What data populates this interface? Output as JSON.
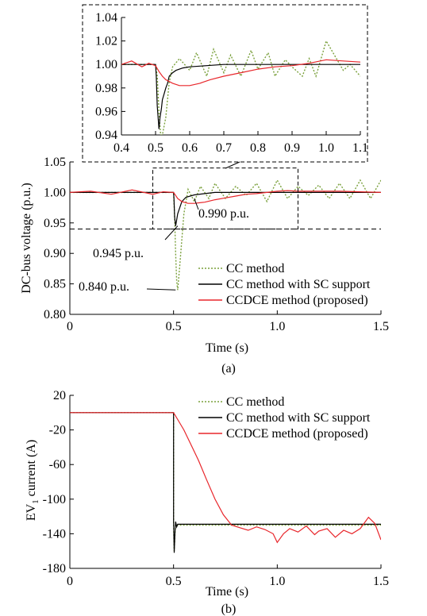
{
  "colors": {
    "cc": "#7aa03c",
    "sc": "#000000",
    "ccdce": "#e8262b"
  },
  "chart_data": [
    {
      "type": "line",
      "panel": "(a)",
      "xlabel": "Time (s)",
      "ylabel": "DC-bus voltage (p.u.)",
      "xlim": [
        0,
        1.5
      ],
      "ylim": [
        0.8,
        1.05
      ],
      "xticks": [
        0,
        0.5,
        1.0,
        1.5
      ],
      "xtick_labels": [
        "0",
        "0.5",
        "1.0",
        "1.5"
      ],
      "yticks": [
        0.8,
        0.85,
        0.9,
        0.95,
        1.0,
        1.05
      ],
      "ytick_labels": [
        "0.80",
        "0.85",
        "0.90",
        "0.95",
        "1.00",
        "1.05"
      ],
      "reference_line": 0.94,
      "annotations": [
        {
          "text": "0.990 p.u.",
          "x": 0.6,
          "y": 0.99
        },
        {
          "text": "0.945 p.u.",
          "x": 0.52,
          "y": 0.945
        },
        {
          "text": "0.840 p.u.",
          "x": 0.51,
          "y": 0.84
        }
      ],
      "legend": [
        "CC method",
        "CC method with SC support",
        "CCDCE method (proposed)"
      ],
      "series": [
        {
          "name": "CC method",
          "x": [
            0,
            0.1,
            0.2,
            0.3,
            0.4,
            0.48,
            0.5,
            0.505,
            0.51,
            0.515,
            0.52,
            0.53,
            0.55,
            0.57,
            0.6,
            0.63,
            0.67,
            0.7,
            0.75,
            0.8,
            0.85,
            0.9,
            0.95,
            1.0,
            1.05,
            1.1,
            1.15,
            1.2,
            1.25,
            1.3,
            1.35,
            1.4,
            1.45,
            1.5
          ],
          "y": [
            1.0,
            1.0,
            1.0,
            1.0,
            1.0,
            1.0,
            1.0,
            0.96,
            0.9,
            0.855,
            0.84,
            0.88,
            0.965,
            1.005,
            0.985,
            1.01,
            0.99,
            1.015,
            0.99,
            1.01,
            0.995,
            1.015,
            0.985,
            1.02,
            0.99,
            1.01,
            0.995,
            1.012,
            0.99,
            1.015,
            0.99,
            1.02,
            0.99,
            1.02
          ]
        },
        {
          "name": "CC method with SC support",
          "x": [
            0,
            0.1,
            0.2,
            0.3,
            0.4,
            0.5,
            0.502,
            0.505,
            0.51,
            0.515,
            0.52,
            0.53,
            0.54,
            0.56,
            0.6,
            0.65,
            0.7,
            0.8,
            0.9,
            1.0,
            1.1,
            1.2,
            1.3,
            1.4,
            1.5
          ],
          "y": [
            1.0,
            1.0,
            1.0,
            1.0,
            1.0,
            1.0,
            0.99,
            0.96,
            0.945,
            0.955,
            0.965,
            0.975,
            0.985,
            0.992,
            0.996,
            0.998,
            1.0,
            1.0,
            1.0,
            1.0,
            1.0,
            1.0,
            1.0,
            1.0,
            1.0
          ]
        },
        {
          "name": "CCDCE method (proposed)",
          "x": [
            0,
            0.1,
            0.2,
            0.3,
            0.4,
            0.45,
            0.5,
            0.51,
            0.52,
            0.54,
            0.57,
            0.6,
            0.65,
            0.7,
            0.75,
            0.8,
            0.85,
            0.9,
            0.95,
            1.0,
            1.05,
            1.1,
            1.2,
            1.3,
            1.4,
            1.5
          ],
          "y": [
            1.0,
            1.002,
            0.997,
            1.004,
            0.997,
            1.001,
            1.0,
            0.995,
            0.99,
            0.985,
            0.982,
            0.982,
            0.984,
            0.988,
            0.991,
            0.994,
            0.997,
            0.998,
            1.0,
            1.002,
            1.003,
            1.002,
            1.002,
            1.002,
            1.001,
            1.0
          ]
        }
      ]
    },
    {
      "type": "line",
      "panel": "inset",
      "xlim": [
        0.4,
        1.1
      ],
      "ylim": [
        0.94,
        1.04
      ],
      "xticks": [
        0.4,
        0.5,
        0.6,
        0.7,
        0.8,
        0.9,
        1.0,
        1.1
      ],
      "xtick_labels": [
        "0.4",
        "0.5",
        "0.6",
        "0.7",
        "0.8",
        "0.9",
        "1.0",
        "1.1"
      ],
      "yticks": [
        0.94,
        0.96,
        0.98,
        1.0,
        1.02,
        1.04
      ],
      "ytick_labels": [
        "0.94",
        "0.96",
        "0.98",
        "1.00",
        "1.02",
        "1.04"
      ],
      "series": [
        {
          "name": "CC method",
          "x": [
            0.4,
            0.45,
            0.49,
            0.5,
            0.505,
            0.51,
            0.515,
            0.52,
            0.53,
            0.54,
            0.55,
            0.57,
            0.6,
            0.62,
            0.65,
            0.67,
            0.7,
            0.72,
            0.75,
            0.78,
            0.8,
            0.83,
            0.85,
            0.88,
            0.9,
            0.93,
            0.95,
            0.97,
            1.0,
            1.02,
            1.05,
            1.07,
            1.1
          ],
          "y": [
            1.0,
            1.0,
            1.0,
            1.0,
            0.99,
            0.96,
            0.94,
            0.94,
            0.955,
            0.985,
            0.998,
            1.005,
            0.995,
            1.01,
            0.99,
            1.013,
            0.993,
            1.008,
            0.99,
            1.012,
            0.996,
            1.01,
            0.99,
            1.004,
            0.998,
            0.99,
            1.005,
            0.99,
            1.02,
            1.01,
            0.995,
            1.0,
            0.99
          ]
        },
        {
          "name": "CC method with SC support",
          "x": [
            0.4,
            0.45,
            0.49,
            0.5,
            0.502,
            0.505,
            0.51,
            0.513,
            0.517,
            0.52,
            0.525,
            0.53,
            0.535,
            0.54,
            0.55,
            0.56,
            0.58,
            0.6,
            0.65,
            0.7,
            0.75,
            0.8,
            0.85,
            0.9,
            0.95,
            1.0,
            1.05,
            1.1
          ],
          "y": [
            1.0,
            1.0,
            1.0,
            1.0,
            0.99,
            0.965,
            0.945,
            0.955,
            0.962,
            0.97,
            0.975,
            0.98,
            0.984,
            0.99,
            0.993,
            0.995,
            0.997,
            0.998,
            0.999,
            1.0,
            1.0,
            1.0,
            1.0,
            1.0,
            1.0,
            1.0,
            1.0,
            1.0
          ]
        },
        {
          "name": "CCDCE method (proposed)",
          "x": [
            0.4,
            0.43,
            0.46,
            0.48,
            0.5,
            0.51,
            0.52,
            0.53,
            0.55,
            0.57,
            0.6,
            0.63,
            0.66,
            0.7,
            0.75,
            0.8,
            0.85,
            0.9,
            0.95,
            1.0,
            1.05,
            1.1
          ],
          "y": [
            1.0,
            1.003,
            0.998,
            1.001,
            0.999,
            0.994,
            0.99,
            0.987,
            0.984,
            0.982,
            0.982,
            0.984,
            0.987,
            0.99,
            0.993,
            0.996,
            0.998,
            0.999,
            1.001,
            1.004,
            1.003,
            1.002
          ]
        }
      ]
    },
    {
      "type": "line",
      "panel": "(b)",
      "xlabel": "Time (s)",
      "ylabel": "EV",
      "ylabel_sub": "1",
      "ylabel_rest": " current (A)",
      "xlim": [
        0,
        1.5
      ],
      "ylim": [
        -180,
        20
      ],
      "xticks": [
        0,
        0.5,
        1.0,
        1.5
      ],
      "xtick_labels": [
        "0",
        "0.5",
        "1.0",
        "1.5"
      ],
      "yticks": [
        20,
        -20,
        -60,
        -100,
        -140,
        -180
      ],
      "ytick_labels": [
        "20",
        "-20",
        "-60",
        "-100",
        "-140",
        "-180"
      ],
      "legend": [
        "CC method",
        "CC method with SC support",
        "CCDCE method (proposed)"
      ],
      "series": [
        {
          "name": "CC method",
          "x": [
            0,
            0.5,
            0.5,
            0.503,
            0.507,
            0.51,
            0.515,
            0.52,
            0.6,
            0.8,
            1.0,
            1.2,
            1.4,
            1.5
          ],
          "y": [
            0,
            0,
            -130,
            -160,
            -140,
            -128,
            -131,
            -130,
            -130,
            -130,
            -130,
            -130,
            -130,
            -130
          ]
        },
        {
          "name": "CC method with SC support",
          "x": [
            0,
            0.5,
            0.5,
            0.503,
            0.507,
            0.51,
            0.515,
            0.52,
            0.6,
            0.8,
            1.0,
            1.2,
            1.4,
            1.5
          ],
          "y": [
            0,
            0,
            -125,
            -162,
            -138,
            -126,
            -132,
            -129,
            -129,
            -129,
            -129,
            -129,
            -129,
            -129
          ]
        },
        {
          "name": "CCDCE method (proposed)",
          "x": [
            0,
            0.5,
            0.52,
            0.55,
            0.58,
            0.62,
            0.66,
            0.7,
            0.74,
            0.78,
            0.82,
            0.86,
            0.9,
            0.94,
            0.98,
            1.0,
            1.03,
            1.06,
            1.1,
            1.14,
            1.18,
            1.2,
            1.24,
            1.28,
            1.32,
            1.36,
            1.4,
            1.44,
            1.47,
            1.5
          ],
          "y": [
            0,
            0,
            -8,
            -20,
            -35,
            -55,
            -78,
            -100,
            -118,
            -130,
            -133,
            -136,
            -132,
            -135,
            -140,
            -150,
            -140,
            -134,
            -138,
            -131,
            -141,
            -137,
            -134,
            -144,
            -136,
            -140,
            -134,
            -121,
            -128,
            -147
          ]
        }
      ]
    }
  ]
}
